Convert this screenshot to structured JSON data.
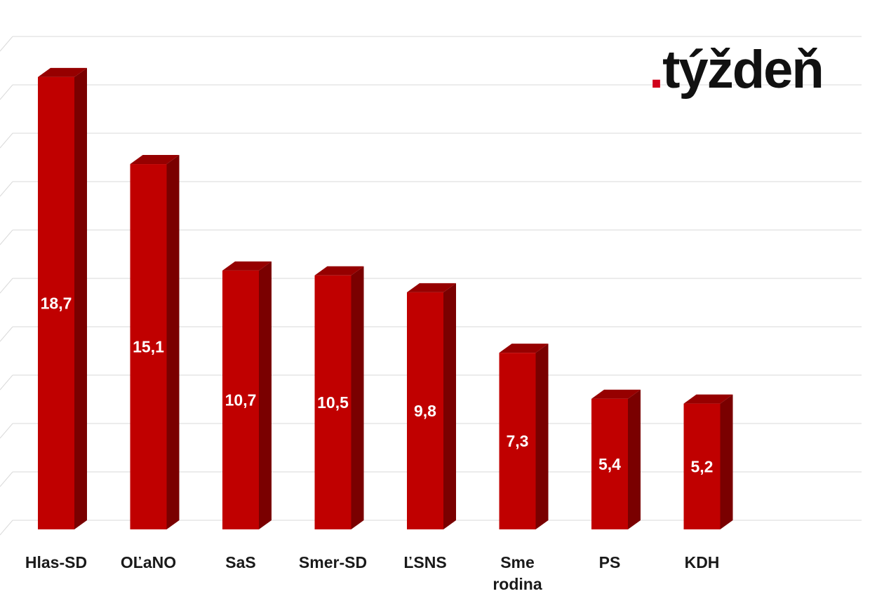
{
  "brand": {
    "dot": ".",
    "name": "týždeň",
    "dot_color": "#d0021b",
    "text_color": "#111111"
  },
  "chart_data": {
    "type": "bar",
    "style": "3d",
    "categories": [
      "Hlas-SD",
      "OĽaNO",
      "SaS",
      "Smer-SD",
      "ĽSNS",
      "Sme rodina",
      "PS",
      "KDH"
    ],
    "values": [
      18.7,
      15.1,
      10.7,
      10.5,
      9.8,
      7.3,
      5.4,
      5.2
    ],
    "value_labels": [
      "18,7",
      "15,1",
      "10,7",
      "10,5",
      "9,8",
      "7,3",
      "5,4",
      "5,2"
    ],
    "category_lines": [
      [
        "Hlas-SD"
      ],
      [
        "OĽaNO"
      ],
      [
        "SaS"
      ],
      [
        "Smer-SD"
      ],
      [
        "ĽSNS"
      ],
      [
        "Sme",
        "rodina"
      ],
      [
        "PS"
      ],
      [
        "KDH"
      ]
    ],
    "ylim": [
      0,
      20
    ],
    "grid": true,
    "legend": "none",
    "colors": {
      "bar_front": "#c00000",
      "bar_side": "#7a0000",
      "bar_top": "#960000",
      "gridline": "#d9d9d9"
    }
  }
}
